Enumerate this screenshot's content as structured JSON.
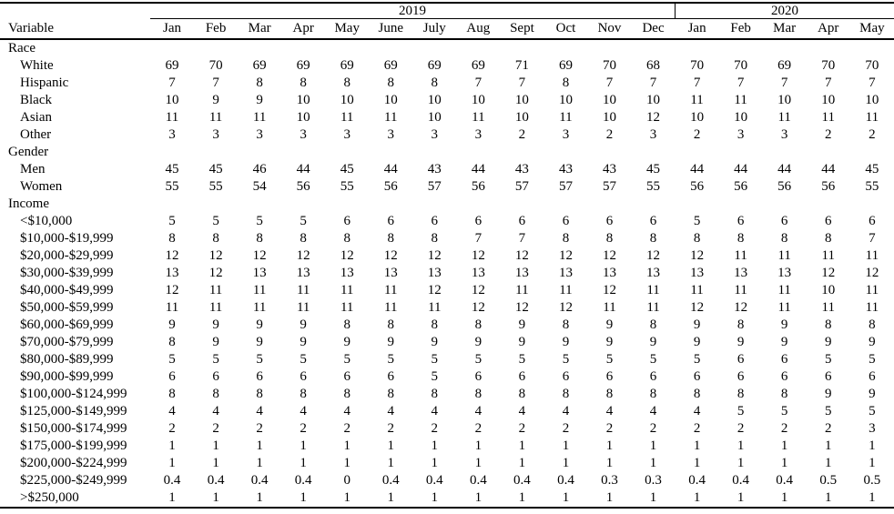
{
  "colors": {
    "background": "#ffffff",
    "text": "#000000",
    "rule": "#000000"
  },
  "table": {
    "variable_header": "Variable",
    "year_groups": [
      {
        "label": "2019",
        "colspan": 12
      },
      {
        "label": "2020",
        "colspan": 5
      }
    ],
    "months": [
      "Jan",
      "Feb",
      "Mar",
      "Apr",
      "May",
      "June",
      "July",
      "Aug",
      "Sept",
      "Oct",
      "Nov",
      "Dec",
      "Jan",
      "Feb",
      "Mar",
      "Apr",
      "May"
    ],
    "rows": [
      {
        "type": "section",
        "label": "Race"
      },
      {
        "type": "data",
        "label": "White",
        "values": [
          "69",
          "70",
          "69",
          "69",
          "69",
          "69",
          "69",
          "69",
          "71",
          "69",
          "70",
          "68",
          "70",
          "70",
          "69",
          "70",
          "70"
        ]
      },
      {
        "type": "data",
        "label": "Hispanic",
        "values": [
          "7",
          "7",
          "8",
          "8",
          "8",
          "8",
          "8",
          "7",
          "7",
          "8",
          "7",
          "7",
          "7",
          "7",
          "7",
          "7",
          "7"
        ]
      },
      {
        "type": "data",
        "label": "Black",
        "values": [
          "10",
          "9",
          "9",
          "10",
          "10",
          "10",
          "10",
          "10",
          "10",
          "10",
          "10",
          "10",
          "11",
          "11",
          "10",
          "10",
          "10"
        ]
      },
      {
        "type": "data",
        "label": "Asian",
        "values": [
          "11",
          "11",
          "11",
          "10",
          "11",
          "11",
          "10",
          "11",
          "10",
          "11",
          "10",
          "12",
          "10",
          "10",
          "11",
          "11",
          "11"
        ]
      },
      {
        "type": "data",
        "label": "Other",
        "values": [
          "3",
          "3",
          "3",
          "3",
          "3",
          "3",
          "3",
          "3",
          "2",
          "3",
          "2",
          "3",
          "2",
          "3",
          "3",
          "2",
          "2"
        ]
      },
      {
        "type": "section",
        "label": "Gender"
      },
      {
        "type": "data",
        "label": "Men",
        "values": [
          "45",
          "45",
          "46",
          "44",
          "45",
          "44",
          "43",
          "44",
          "43",
          "43",
          "43",
          "45",
          "44",
          "44",
          "44",
          "44",
          "45"
        ]
      },
      {
        "type": "data",
        "label": "Women",
        "values": [
          "55",
          "55",
          "54",
          "56",
          "55",
          "56",
          "57",
          "56",
          "57",
          "57",
          "57",
          "55",
          "56",
          "56",
          "56",
          "56",
          "55"
        ]
      },
      {
        "type": "section",
        "label": "Income"
      },
      {
        "type": "data",
        "label": "<$10,000",
        "values": [
          "5",
          "5",
          "5",
          "5",
          "6",
          "6",
          "6",
          "6",
          "6",
          "6",
          "6",
          "6",
          "5",
          "6",
          "6",
          "6",
          "6"
        ]
      },
      {
        "type": "data",
        "label": "$10,000-$19,999",
        "values": [
          "8",
          "8",
          "8",
          "8",
          "8",
          "8",
          "8",
          "7",
          "7",
          "8",
          "8",
          "8",
          "8",
          "8",
          "8",
          "8",
          "7"
        ]
      },
      {
        "type": "data",
        "label": "$20,000-$29,999",
        "values": [
          "12",
          "12",
          "12",
          "12",
          "12",
          "12",
          "12",
          "12",
          "12",
          "12",
          "12",
          "12",
          "12",
          "11",
          "11",
          "11",
          "11"
        ]
      },
      {
        "type": "data",
        "label": "$30,000-$39,999",
        "values": [
          "13",
          "12",
          "13",
          "13",
          "13",
          "13",
          "13",
          "13",
          "13",
          "13",
          "13",
          "13",
          "13",
          "13",
          "13",
          "12",
          "12"
        ]
      },
      {
        "type": "data",
        "label": "$40,000-$49,999",
        "values": [
          "12",
          "11",
          "11",
          "11",
          "11",
          "11",
          "12",
          "12",
          "11",
          "11",
          "12",
          "11",
          "11",
          "11",
          "11",
          "10",
          "11"
        ]
      },
      {
        "type": "data",
        "label": "$50,000-$59,999",
        "values": [
          "11",
          "11",
          "11",
          "11",
          "11",
          "11",
          "11",
          "12",
          "12",
          "12",
          "11",
          "11",
          "12",
          "12",
          "11",
          "11",
          "11"
        ]
      },
      {
        "type": "data",
        "label": "$60,000-$69,999",
        "values": [
          "9",
          "9",
          "9",
          "9",
          "8",
          "8",
          "8",
          "8",
          "9",
          "8",
          "9",
          "8",
          "9",
          "8",
          "9",
          "8",
          "8"
        ]
      },
      {
        "type": "data",
        "label": "$70,000-$79,999",
        "values": [
          "8",
          "9",
          "9",
          "9",
          "9",
          "9",
          "9",
          "9",
          "9",
          "9",
          "9",
          "9",
          "9",
          "9",
          "9",
          "9",
          "9"
        ]
      },
      {
        "type": "data",
        "label": "$80,000-$89,999",
        "values": [
          "5",
          "5",
          "5",
          "5",
          "5",
          "5",
          "5",
          "5",
          "5",
          "5",
          "5",
          "5",
          "5",
          "6",
          "6",
          "5",
          "5"
        ]
      },
      {
        "type": "data",
        "label": "$90,000-$99,999",
        "values": [
          "6",
          "6",
          "6",
          "6",
          "6",
          "6",
          "5",
          "6",
          "6",
          "6",
          "6",
          "6",
          "6",
          "6",
          "6",
          "6",
          "6"
        ]
      },
      {
        "type": "data",
        "label": "$100,000-$124,999",
        "values": [
          "8",
          "8",
          "8",
          "8",
          "8",
          "8",
          "8",
          "8",
          "8",
          "8",
          "8",
          "8",
          "8",
          "8",
          "8",
          "9",
          "9"
        ]
      },
      {
        "type": "data",
        "label": "$125,000-$149,999",
        "values": [
          "4",
          "4",
          "4",
          "4",
          "4",
          "4",
          "4",
          "4",
          "4",
          "4",
          "4",
          "4",
          "4",
          "5",
          "5",
          "5",
          "5"
        ]
      },
      {
        "type": "data",
        "label": "$150,000-$174,999",
        "values": [
          "2",
          "2",
          "2",
          "2",
          "2",
          "2",
          "2",
          "2",
          "2",
          "2",
          "2",
          "2",
          "2",
          "2",
          "2",
          "2",
          "3"
        ]
      },
      {
        "type": "data",
        "label": "$175,000-$199,999",
        "values": [
          "1",
          "1",
          "1",
          "1",
          "1",
          "1",
          "1",
          "1",
          "1",
          "1",
          "1",
          "1",
          "1",
          "1",
          "1",
          "1",
          "1"
        ]
      },
      {
        "type": "data",
        "label": "$200,000-$224,999",
        "values": [
          "1",
          "1",
          "1",
          "1",
          "1",
          "1",
          "1",
          "1",
          "1",
          "1",
          "1",
          "1",
          "1",
          "1",
          "1",
          "1",
          "1"
        ]
      },
      {
        "type": "data",
        "label": "$225,000-$249,999",
        "values": [
          "0.4",
          "0.4",
          "0.4",
          "0.4",
          "0",
          "0.4",
          "0.4",
          "0.4",
          "0.4",
          "0.4",
          "0.3",
          "0.3",
          "0.4",
          "0.4",
          "0.4",
          "0.5",
          "0.5"
        ]
      },
      {
        "type": "data",
        "label": ">$250,000",
        "values": [
          "1",
          "1",
          "1",
          "1",
          "1",
          "1",
          "1",
          "1",
          "1",
          "1",
          "1",
          "1",
          "1",
          "1",
          "1",
          "1",
          "1"
        ]
      }
    ]
  }
}
